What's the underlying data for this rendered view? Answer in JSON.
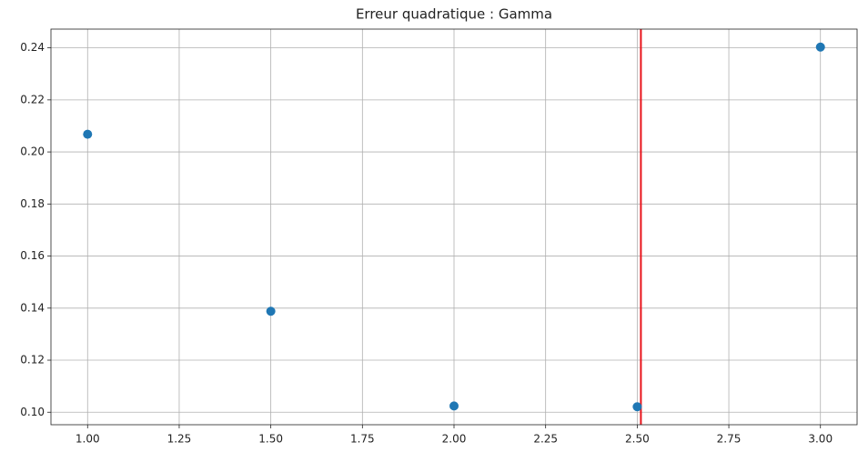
{
  "chart_data": {
    "type": "scatter",
    "title": "Erreur quadratique : Gamma",
    "x": [
      1.0,
      1.5,
      2.0,
      2.5,
      3.0
    ],
    "values": [
      0.2068,
      0.1388,
      0.1024,
      0.1021,
      0.2403
    ],
    "color": "#1f77b4",
    "xlim": [
      0.9,
      3.1
    ],
    "ylim": [
      0.0952,
      0.2472
    ],
    "xticks": [
      {
        "value": 1,
        "label": "1.00"
      },
      {
        "value": 1.25,
        "label": "1.25"
      },
      {
        "value": 1.5,
        "label": "1.50"
      },
      {
        "value": 1.75,
        "label": "1.75"
      },
      {
        "value": 2,
        "label": "2.00"
      },
      {
        "value": 2.25,
        "label": "2.25"
      },
      {
        "value": 2.5,
        "label": "2.50"
      },
      {
        "value": 2.75,
        "label": "2.75"
      },
      {
        "value": 3,
        "label": "3.00"
      }
    ],
    "yticks": [
      {
        "value": 0.1,
        "label": "0.10"
      },
      0.12,
      0.14,
      0.16,
      0.18,
      {
        "value": 0.2,
        "label": "0.20"
      },
      0.22,
      0.24
    ],
    "vline": {
      "value": 2.51,
      "color": "#e8141c"
    },
    "grid": true
  }
}
